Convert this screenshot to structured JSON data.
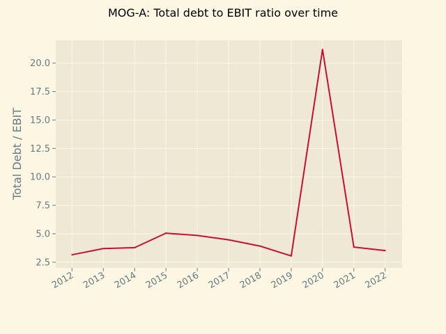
{
  "chart_data": {
    "type": "line",
    "title": "MOG-A: Total debt to EBIT ratio over time",
    "xlabel": "",
    "ylabel": "Total Debt / EBIT",
    "categories": [
      "2012",
      "2013",
      "2014",
      "2015",
      "2016",
      "2017",
      "2018",
      "2019",
      "2020",
      "2021",
      "2022"
    ],
    "series": [
      {
        "values": [
          3.15,
          3.7,
          3.78,
          5.05,
          4.85,
          4.47,
          3.92,
          3.05,
          21.2,
          3.83,
          3.52
        ]
      }
    ],
    "ylim": [
      2.0,
      22.0
    ],
    "yticks": [
      2.5,
      5.0,
      7.5,
      10.0,
      12.5,
      15.0,
      17.5,
      20.0
    ],
    "ytick_labels": [
      "2.5",
      "5.0",
      "7.5",
      "10.0",
      "12.5",
      "15.0",
      "17.5",
      "20.0"
    ],
    "grid": true,
    "legend": "none",
    "colors": {
      "line": "#c8102e",
      "plot_background": "#eee8d5",
      "figure_background": "#fdf6e3",
      "grid": "#fdf6e3",
      "tick_text": "#657b83"
    }
  }
}
